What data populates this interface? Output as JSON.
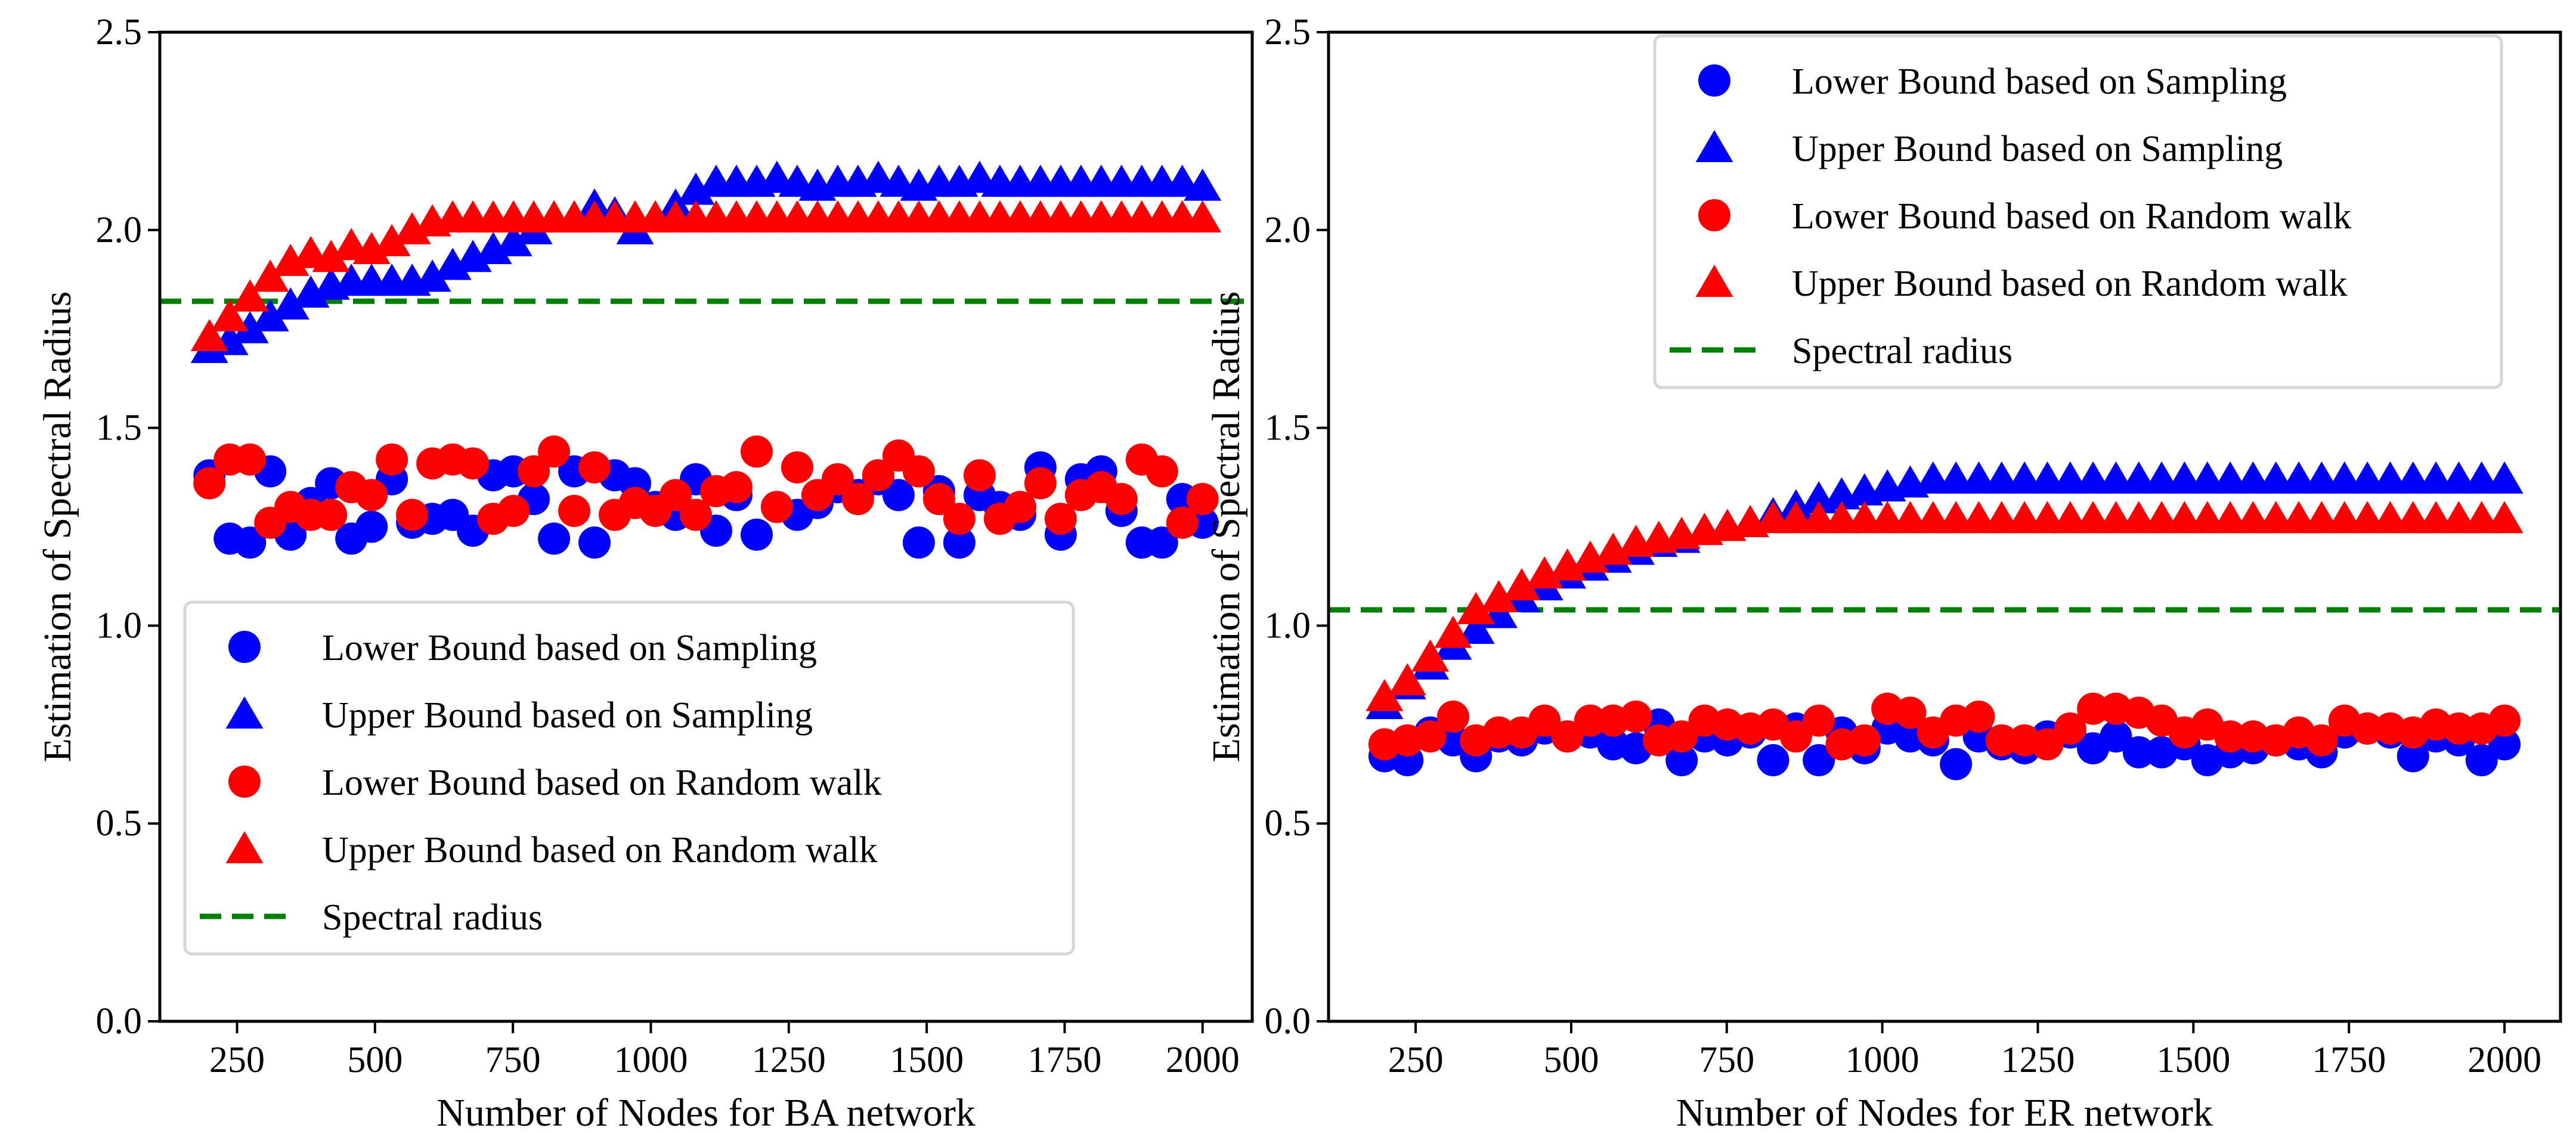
{
  "chart_data": [
    {
      "type": "scatter",
      "xlabel": "Number of Nodes for BA network",
      "ylabel": "Estimation of Spectral Radius",
      "xlim": [
        110,
        2090
      ],
      "ylim": [
        0,
        2.5
      ],
      "xticks": [
        250,
        500,
        750,
        1000,
        1250,
        1500,
        1750,
        2000
      ],
      "yticks": [
        0.0,
        0.5,
        1.0,
        1.5,
        2.0,
        2.5
      ],
      "ytick_labels": [
        "0.0",
        "0.5",
        "1.0",
        "1.5",
        "2.0",
        "2.5"
      ],
      "legend_position": "lower-left",
      "x": {
        "start": 200,
        "end": 2000,
        "count": 50
      },
      "spectral_radius": 1.82,
      "series": [
        {
          "name": "Lower Bound  based on Sampling",
          "marker": "circle",
          "color": "#0000ff",
          "values": [
            1.38,
            1.22,
            1.21,
            1.39,
            1.23,
            1.31,
            1.36,
            1.22,
            1.25,
            1.37,
            1.26,
            1.27,
            1.28,
            1.24,
            1.38,
            1.39,
            1.32,
            1.22,
            1.39,
            1.21,
            1.38,
            1.36,
            1.3,
            1.28,
            1.37,
            1.24,
            1.33,
            1.23,
            1.3,
            1.28,
            1.31,
            1.35,
            1.33,
            1.37,
            1.33,
            1.21,
            1.34,
            1.21,
            1.33,
            1.3,
            1.28,
            1.4,
            1.23,
            1.37,
            1.39,
            1.29,
            1.21,
            1.21,
            1.32,
            1.26
          ]
        },
        {
          "name": "Upper Bound  based on Sampling",
          "marker": "triangle",
          "color": "#0000ff",
          "values": [
            1.7,
            1.72,
            1.75,
            1.78,
            1.81,
            1.84,
            1.86,
            1.87,
            1.87,
            1.87,
            1.87,
            1.88,
            1.91,
            1.93,
            1.95,
            1.97,
            2.0,
            2.03,
            2.03,
            2.06,
            2.04,
            2.0,
            2.03,
            2.06,
            2.1,
            2.12,
            2.12,
            2.12,
            2.13,
            2.12,
            2.11,
            2.12,
            2.12,
            2.13,
            2.12,
            2.11,
            2.12,
            2.12,
            2.13,
            2.12,
            2.12,
            2.12,
            2.12,
            2.12,
            2.12,
            2.12,
            2.12,
            2.12,
            2.12,
            2.11
          ]
        },
        {
          "name": "Lower Bound based on Random walk",
          "marker": "circle",
          "color": "#ff0000",
          "values": [
            1.36,
            1.42,
            1.42,
            1.26,
            1.3,
            1.28,
            1.28,
            1.35,
            1.33,
            1.42,
            1.28,
            1.41,
            1.42,
            1.41,
            1.27,
            1.29,
            1.39,
            1.44,
            1.29,
            1.4,
            1.28,
            1.31,
            1.29,
            1.33,
            1.28,
            1.34,
            1.35,
            1.44,
            1.3,
            1.4,
            1.33,
            1.37,
            1.32,
            1.38,
            1.43,
            1.39,
            1.32,
            1.27,
            1.38,
            1.27,
            1.3,
            1.36,
            1.27,
            1.33,
            1.35,
            1.32,
            1.42,
            1.39,
            1.26,
            1.32
          ]
        },
        {
          "name": "Upper Bound  based on Random walk",
          "marker": "triangle",
          "color": "#ff0000",
          "values": [
            1.73,
            1.78,
            1.83,
            1.88,
            1.92,
            1.94,
            1.93,
            1.96,
            1.95,
            1.97,
            2.0,
            2.02,
            2.03,
            2.03,
            2.03,
            2.03,
            2.03,
            2.03,
            2.03,
            2.03,
            2.03,
            2.03,
            2.03,
            2.03,
            2.03,
            2.03,
            2.03,
            2.03,
            2.03,
            2.03,
            2.03,
            2.03,
            2.03,
            2.03,
            2.03,
            2.03,
            2.03,
            2.03,
            2.03,
            2.03,
            2.03,
            2.03,
            2.03,
            2.03,
            2.03,
            2.03,
            2.03,
            2.03,
            2.03,
            2.03
          ]
        },
        {
          "name": "Spectral radius",
          "marker": "dashed-line",
          "color": "#008000"
        }
      ]
    },
    {
      "type": "scatter",
      "xlabel": "Number of Nodes for ER network",
      "ylabel": "Estimation of Spectral Radius",
      "xlim": [
        110,
        2090
      ],
      "ylim": [
        0,
        2.5
      ],
      "xticks": [
        250,
        500,
        750,
        1000,
        1250,
        1500,
        1750,
        2000
      ],
      "yticks": [
        0.0,
        0.5,
        1.0,
        1.5,
        2.0,
        2.5
      ],
      "ytick_labels": [
        "0.0",
        "0.5",
        "1.0",
        "1.5",
        "2.0",
        "2.5"
      ],
      "legend_position": "upper-right",
      "x": {
        "start": 200,
        "end": 2000,
        "count": 50
      },
      "spectral_radius": 1.04,
      "series": [
        {
          "name": "Lower Bound  based on Sampling",
          "marker": "circle",
          "color": "#0000ff",
          "values": [
            0.67,
            0.66,
            0.73,
            0.71,
            0.67,
            0.72,
            0.71,
            0.74,
            0.72,
            0.73,
            0.7,
            0.69,
            0.75,
            0.66,
            0.72,
            0.71,
            0.73,
            0.66,
            0.74,
            0.66,
            0.73,
            0.69,
            0.74,
            0.72,
            0.71,
            0.65,
            0.72,
            0.7,
            0.69,
            0.72,
            0.73,
            0.69,
            0.72,
            0.68,
            0.68,
            0.7,
            0.66,
            0.68,
            0.69,
            0.71,
            0.7,
            0.68,
            0.73,
            0.74,
            0.73,
            0.67,
            0.72,
            0.71,
            0.66,
            0.7
          ]
        },
        {
          "name": "Upper Bound  based on Sampling",
          "marker": "triangle",
          "color": "#0000ff",
          "values": [
            0.8,
            0.85,
            0.9,
            0.95,
            0.99,
            1.03,
            1.07,
            1.1,
            1.13,
            1.15,
            1.17,
            1.19,
            1.21,
            1.22,
            1.24,
            1.25,
            1.26,
            1.28,
            1.3,
            1.32,
            1.33,
            1.34,
            1.35,
            1.36,
            1.37,
            1.37,
            1.37,
            1.37,
            1.37,
            1.37,
            1.37,
            1.37,
            1.37,
            1.37,
            1.37,
            1.37,
            1.37,
            1.37,
            1.37,
            1.37,
            1.37,
            1.37,
            1.37,
            1.37,
            1.37,
            1.37,
            1.37,
            1.37,
            1.37,
            1.37
          ]
        },
        {
          "name": "Lower Bound based on Random walk",
          "marker": "circle",
          "color": "#ff0000",
          "values": [
            0.7,
            0.71,
            0.72,
            0.77,
            0.71,
            0.73,
            0.73,
            0.76,
            0.72,
            0.76,
            0.76,
            0.77,
            0.71,
            0.72,
            0.76,
            0.75,
            0.74,
            0.75,
            0.72,
            0.76,
            0.7,
            0.71,
            0.79,
            0.78,
            0.73,
            0.76,
            0.77,
            0.71,
            0.71,
            0.7,
            0.74,
            0.79,
            0.79,
            0.78,
            0.76,
            0.73,
            0.75,
            0.72,
            0.72,
            0.71,
            0.73,
            0.71,
            0.76,
            0.74,
            0.74,
            0.73,
            0.75,
            0.74,
            0.74,
            0.76
          ]
        },
        {
          "name": "Upper Bound  based on Random walk",
          "marker": "triangle",
          "color": "#ff0000",
          "values": [
            0.82,
            0.86,
            0.92,
            0.98,
            1.04,
            1.07,
            1.1,
            1.13,
            1.15,
            1.17,
            1.19,
            1.21,
            1.22,
            1.23,
            1.24,
            1.25,
            1.26,
            1.27,
            1.27,
            1.27,
            1.27,
            1.27,
            1.27,
            1.27,
            1.27,
            1.27,
            1.27,
            1.27,
            1.27,
            1.27,
            1.27,
            1.27,
            1.27,
            1.27,
            1.27,
            1.27,
            1.27,
            1.27,
            1.27,
            1.27,
            1.27,
            1.27,
            1.27,
            1.27,
            1.27,
            1.27,
            1.27,
            1.27,
            1.27,
            1.27
          ]
        },
        {
          "name": "Spectral radius",
          "marker": "dashed-line",
          "color": "#008000"
        }
      ]
    }
  ]
}
